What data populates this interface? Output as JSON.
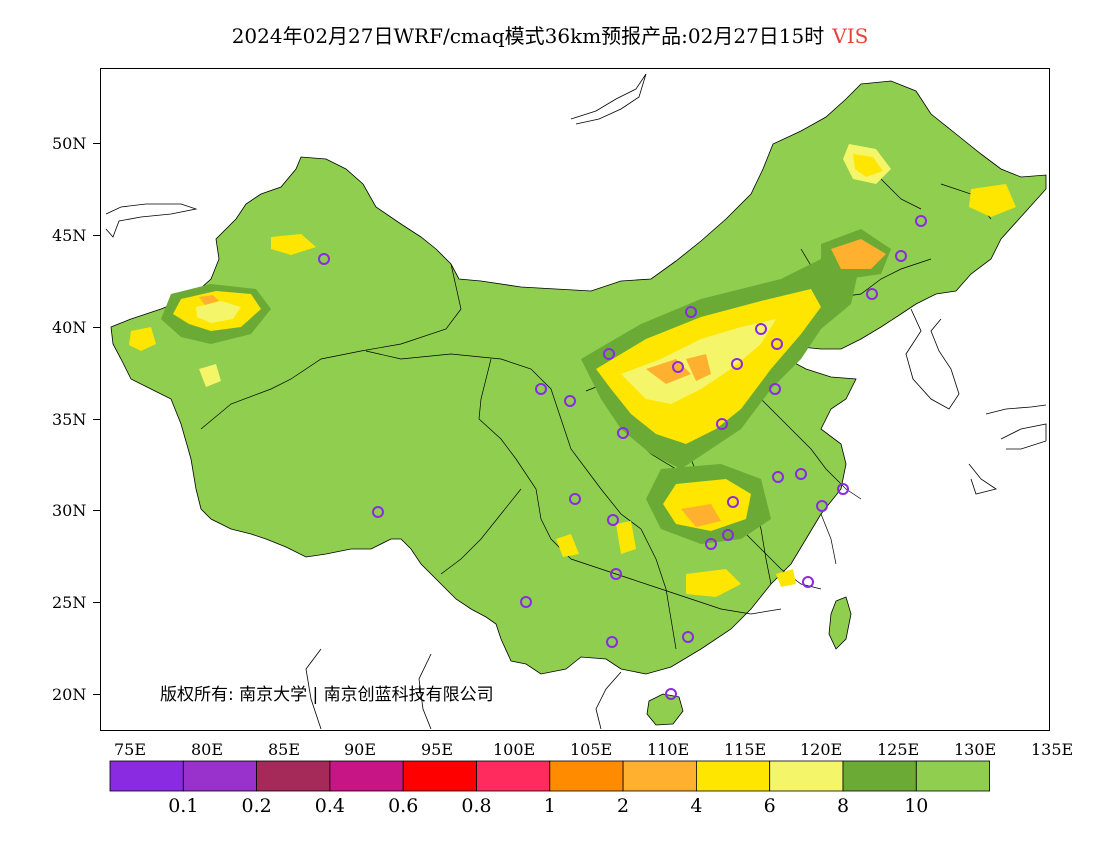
{
  "title": {
    "text": "2024年02月27日WRF/cmaq模式36km预报产品:02月27日15时",
    "variable": "VIS",
    "variable_color": "#e8413c"
  },
  "copyright": "版权所有: 南京大学 | 南京创蓝科技有限公司",
  "map": {
    "lon_range": [
      73,
      135
    ],
    "lat_range": [
      18,
      54
    ],
    "lat_ticks": [
      "50N",
      "45N",
      "40N",
      "35N",
      "30N",
      "25N",
      "20N"
    ],
    "lon_ticks": [
      "75E",
      "80E",
      "85E",
      "90E",
      "95E",
      "100E",
      "105E",
      "110E",
      "115E",
      "120E",
      "125E",
      "130E",
      "135E"
    ],
    "land_color": "#8fce4f",
    "stations_color": "#8a2be2"
  },
  "legend": {
    "colors": [
      "#8a2be2",
      "#9932cc",
      "#a52a5a",
      "#c71585",
      "#ff0000",
      "#ff2b5e",
      "#ff8c00",
      "#ffb02e",
      "#ffe600",
      "#f5f56a",
      "#6aaa35",
      "#8fce4f"
    ],
    "labels": [
      "0.1",
      "0.2",
      "0.4",
      "0.6",
      "0.8",
      "1",
      "2",
      "4",
      "6",
      "8",
      "10"
    ]
  }
}
